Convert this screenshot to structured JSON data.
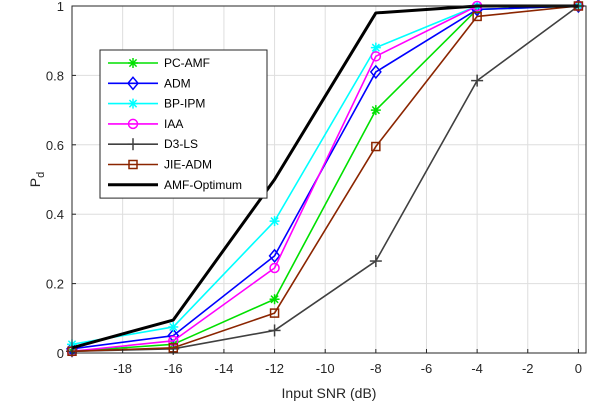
{
  "chart_data": {
    "type": "line",
    "title": "",
    "xlabel": "Input SNR (dB)",
    "ylabel_main": "P",
    "ylabel_sub": "d",
    "xlim": [
      -20,
      0.3
    ],
    "ylim": [
      0,
      1
    ],
    "xticks": [
      -18,
      -16,
      -14,
      -12,
      -10,
      -8,
      -6,
      -4,
      -2,
      0
    ],
    "yticks": [
      0,
      0.2,
      0.4,
      0.6,
      0.8,
      1
    ],
    "xtick_labels": [
      "-18",
      "-16",
      "-14",
      "-12",
      "-10",
      "-8",
      "-6",
      "-4",
      "-2",
      "0"
    ],
    "ytick_labels": [
      "0",
      "0.2",
      "0.4",
      "0.6",
      "0.8",
      "1"
    ],
    "grid": true,
    "legend_position": "upper-left",
    "x": [
      -20,
      -16,
      -12,
      -8,
      -4,
      0
    ],
    "series": [
      {
        "name": "PC-AMF",
        "color": "#00e000",
        "marker": "asterisk",
        "values": [
          0.005,
          0.025,
          0.155,
          0.7,
          0.99,
          1.0
        ]
      },
      {
        "name": "ADM",
        "color": "#0000ff",
        "marker": "diamond",
        "values": [
          0.012,
          0.05,
          0.28,
          0.81,
          0.99,
          1.0
        ]
      },
      {
        "name": "BP-IPM",
        "color": "#00ffff",
        "marker": "asterisk",
        "values": [
          0.025,
          0.075,
          0.38,
          0.88,
          1.0,
          1.0
        ]
      },
      {
        "name": "IAA",
        "color": "#ff00ff",
        "marker": "circle",
        "values": [
          0.005,
          0.035,
          0.245,
          0.855,
          1.0,
          1.0
        ]
      },
      {
        "name": "D3-LS",
        "color": "#404040",
        "marker": "plus",
        "values": [
          0.005,
          0.012,
          0.065,
          0.265,
          0.785,
          1.0
        ]
      },
      {
        "name": "JIE-ADM",
        "color": "#8b2500",
        "marker": "square",
        "values": [
          0.005,
          0.015,
          0.115,
          0.595,
          0.97,
          1.0
        ]
      },
      {
        "name": "AMF-Optimum",
        "color": "#000000",
        "marker": "none",
        "values": [
          0.015,
          0.095,
          0.5,
          0.98,
          1.0,
          1.0
        ]
      }
    ]
  }
}
